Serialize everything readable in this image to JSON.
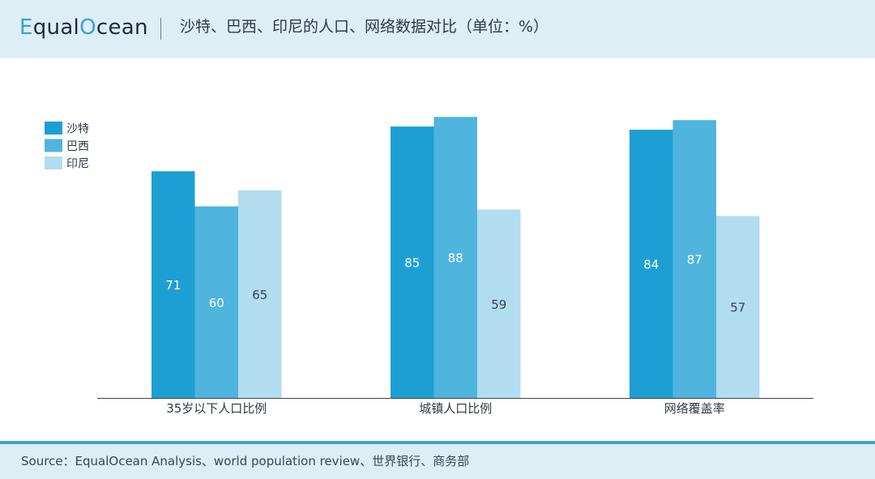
{
  "header": {
    "logo_prefix": "E",
    "logo_mid": "qual",
    "logo_o": "O",
    "logo_suffix": "cean",
    "title": "沙特、巴西、印尼的人口、网络数据对比（单位：%）"
  },
  "colors": {
    "header_bg": "#ddeef5",
    "accent": "#3aa6d3",
    "series": [
      "#1e9fd4",
      "#4fb4de",
      "#b1ddef"
    ]
  },
  "chart_data": {
    "type": "bar",
    "title": "沙特、巴西、印尼的人口、网络数据对比（单位：%）",
    "categories": [
      "35岁以下人口比例",
      "城镇人口比例",
      "网络覆盖率"
    ],
    "series": [
      {
        "name": "沙特",
        "values": [
          71,
          85,
          84
        ]
      },
      {
        "name": "巴西",
        "values": [
          60,
          88,
          87
        ]
      },
      {
        "name": "印尼",
        "values": [
          65,
          59,
          57
        ]
      }
    ],
    "ylim": [
      0,
      100
    ],
    "grid": false,
    "legend_position": "top-left",
    "data_labels": true
  },
  "footer": {
    "source": "Source：EqualOcean Analysis、world population review、世界银行、商务部"
  }
}
